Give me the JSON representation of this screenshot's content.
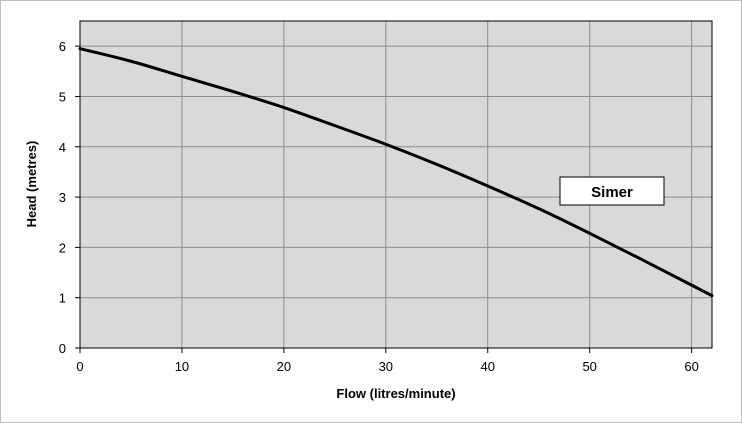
{
  "chart_data": {
    "type": "line",
    "title": "",
    "xlabel": "Flow (litres/minute)",
    "ylabel": "Head (metres)",
    "xlim": [
      0,
      62
    ],
    "ylim": [
      0,
      6.5
    ],
    "x_ticks": [
      "0",
      "10",
      "20",
      "30",
      "40",
      "50",
      "60"
    ],
    "y_ticks": [
      "0",
      "1",
      "2",
      "3",
      "4",
      "5",
      "6"
    ],
    "grid": true,
    "legend_position": "right",
    "series": [
      {
        "name": "Simer",
        "x": [
          0,
          5,
          10,
          15,
          20,
          25,
          30,
          35,
          40,
          45,
          50,
          55,
          60,
          62
        ],
        "y": [
          5.95,
          5.7,
          5.4,
          5.1,
          4.78,
          4.42,
          4.05,
          3.65,
          3.22,
          2.77,
          2.28,
          1.77,
          1.25,
          1.04
        ]
      }
    ]
  },
  "colors": {
    "plot_background": "#d9d9d9",
    "grid": "#8c8c8c",
    "series_line": "#000000",
    "outer_border": "#bfbfbf"
  }
}
